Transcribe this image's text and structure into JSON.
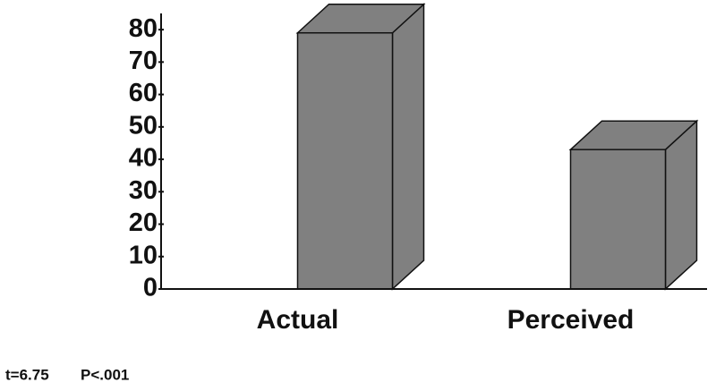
{
  "chart_data": {
    "type": "bar",
    "categories": [
      "Actual",
      "Perceived"
    ],
    "values": [
      79,
      43
    ],
    "color": "#808080",
    "ylim": [
      0,
      85
    ],
    "yticks": [
      0,
      10,
      20,
      30,
      40,
      50,
      60,
      70,
      80
    ],
    "annotations": [
      "t=6.75",
      "P<.001"
    ]
  }
}
